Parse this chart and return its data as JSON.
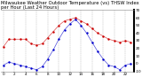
{
  "title": "Milwaukee Weather Outdoor Temperature (vs) THSW Index per Hour (Last 24 Hours)",
  "hours": [
    0,
    1,
    2,
    3,
    4,
    5,
    6,
    7,
    8,
    9,
    10,
    11,
    12,
    13,
    14,
    15,
    16,
    17,
    18,
    19,
    20,
    21,
    22,
    23
  ],
  "temp": [
    22,
    32,
    32,
    32,
    32,
    26,
    24,
    26,
    34,
    42,
    50,
    56,
    58,
    60,
    56,
    52,
    46,
    40,
    36,
    32,
    30,
    28,
    30,
    28
  ],
  "thsw": [
    -2,
    2,
    0,
    -2,
    -4,
    -6,
    -8,
    -4,
    6,
    18,
    32,
    44,
    52,
    58,
    50,
    40,
    28,
    16,
    6,
    -2,
    -4,
    -8,
    -2,
    0
  ],
  "temp_color": "#cc0000",
  "thsw_color": "#0000cc",
  "bg_color": "#ffffff",
  "grid_color": "#999999",
  "ylim": [
    -10,
    70
  ],
  "ytick_values": [
    70,
    60,
    50,
    40,
    30,
    20,
    10,
    0,
    -10
  ],
  "title_fontsize": 3.8,
  "tick_fontsize": 3.0,
  "line_width": 1.0,
  "marker_size": 1.5
}
